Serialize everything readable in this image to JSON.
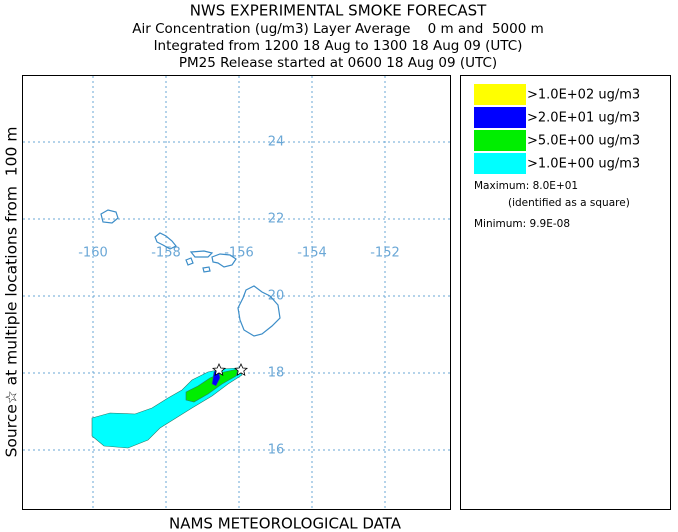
{
  "header": {
    "title": "NWS EXPERIMENTAL SMOKE FORECAST",
    "lines": [
      "Air Concentration (ug/m3) Layer Average    0 m and  5000 m",
      "Integrated from 1200 18 Aug to 1300 18 Aug 09 (UTC)",
      "PM25 Release started at 0600 18 Aug 09 (UTC)"
    ]
  },
  "side_label": "Source☆ at multiple locations from  100 m",
  "footer": "NAMS METEOROLOGICAL DATA",
  "map": {
    "lon_ticks": [
      -160,
      -158,
      -156,
      -154,
      -152
    ],
    "lat_ticks": [
      16,
      18,
      20,
      22,
      24
    ],
    "grid_color": "#6aa7d6"
  },
  "legend": {
    "entries": [
      {
        "label": ">1.0E+02 ug/m3",
        "color": "#ffff00"
      },
      {
        "label": ">2.0E+01 ug/m3",
        "color": "#0000ff"
      },
      {
        "label": ">5.0E+00 ug/m3",
        "color": "#00ee00"
      },
      {
        "label": ">1.0E+00 ug/m3",
        "color": "#00ffff"
      }
    ],
    "maximum": "Maximum: 8.0E+01",
    "maximum_note": "(identified as a square)",
    "minimum": "Minimum: 9.9E-08"
  }
}
